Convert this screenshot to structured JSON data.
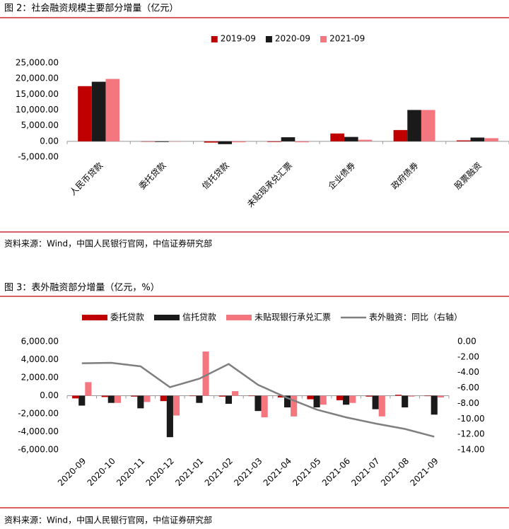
{
  "chart_data": [
    {
      "type": "bar",
      "title": "图 2：社会融资规模主要部分增量（亿元）",
      "source": "资料来源：Wind，中国人民银行官网，中信证券研究部",
      "categories": [
        "人民币贷款",
        "委托贷款",
        "信托贷款",
        "未贴现承兑汇票",
        "企业债券",
        "政府债券",
        "股票融资"
      ],
      "series": [
        {
          "name": "2019-09",
          "color": "#c00000",
          "values": [
            17600,
            -120,
            -400,
            -200,
            2500,
            3600,
            300
          ]
        },
        {
          "name": "2020-09",
          "color": "#1a1a1a",
          "values": [
            19000,
            -200,
            -900,
            1300,
            1400,
            10000,
            1200
          ]
        },
        {
          "name": "2021-09",
          "color": "#f4767f",
          "values": [
            19900,
            -100,
            -300,
            -300,
            500,
            10000,
            1000
          ]
        }
      ],
      "ylim": [
        -5000,
        25000
      ],
      "yticks": [
        {
          "value": -5000,
          "label": "-5,000.00"
        },
        {
          "value": 0,
          "label": "0.00"
        },
        {
          "value": 5000,
          "label": "5,000.00"
        },
        {
          "value": 10000,
          "label": "10,000.00"
        },
        {
          "value": 15000,
          "label": "15,000.00"
        },
        {
          "value": 20000,
          "label": "20,000.00"
        },
        {
          "value": 25000,
          "label": "25,000.00"
        }
      ],
      "legend": "top",
      "grid": false
    },
    {
      "type": "bar",
      "title": "图 3：表外融资部分增量（亿元，%）",
      "source": "资料来源：Wind，中国人民银行官网，中信证券研究部",
      "categories": [
        "2020-09",
        "2020-10",
        "2020-11",
        "2020-12",
        "2021-01",
        "2021-02",
        "2021-03",
        "2021-04",
        "2021-05",
        "2021-06",
        "2021-07",
        "2021-08",
        "2021-09"
      ],
      "series": [
        {
          "name": "委托贷款",
          "color": "#c00000",
          "values": [
            -300,
            -150,
            -100,
            -600,
            -50,
            -100,
            -50,
            -200,
            -400,
            -500,
            -100,
            100,
            -50
          ]
        },
        {
          "name": "信托贷款",
          "color": "#1a1a1a",
          "values": [
            -1100,
            -800,
            -1400,
            -4600,
            -800,
            -900,
            -1700,
            -1300,
            -1300,
            -1000,
            -1500,
            -1300,
            -2100
          ]
        },
        {
          "name": "未贴现银行承兑汇票",
          "color": "#f4767f",
          "values": [
            1500,
            -800,
            -700,
            -2200,
            4900,
            500,
            -2400,
            -2300,
            -1000,
            -800,
            -2300,
            -100,
            -200
          ]
        },
        {
          "name": "表外融资：同比（右轴）",
          "color": "#7f7f7f",
          "type": "line",
          "axis": "y2",
          "values": [
            -2.8,
            -2.75,
            -3.2,
            -5.9,
            -4.8,
            -2.9,
            -5.6,
            -7.3,
            -8.8,
            -9.8,
            -10.6,
            -11.3,
            -12.3
          ]
        }
      ],
      "ylim": [
        -6000,
        6000
      ],
      "yticks": [
        {
          "value": -6000,
          "label": "-6,000.00"
        },
        {
          "value": -4000,
          "label": "-4,000.00"
        },
        {
          "value": -2000,
          "label": "-2,000.00"
        },
        {
          "value": 0,
          "label": "0.00"
        },
        {
          "value": 2000,
          "label": "2,000.00"
        },
        {
          "value": 4000,
          "label": "4,000.00"
        },
        {
          "value": 6000,
          "label": "6,000.00"
        }
      ],
      "y2lim": [
        -14,
        0
      ],
      "y2ticks": [
        {
          "value": -14,
          "label": "-14.00"
        },
        {
          "value": -12,
          "label": "-12.00"
        },
        {
          "value": -10,
          "label": "-10.00"
        },
        {
          "value": -8,
          "label": "-8.00"
        },
        {
          "value": -6,
          "label": "-6.00"
        },
        {
          "value": -4,
          "label": "-4.00"
        },
        {
          "value": -2,
          "label": "-2.00"
        },
        {
          "value": 0,
          "label": "0.00"
        }
      ],
      "legend": "top",
      "grid": false
    }
  ]
}
